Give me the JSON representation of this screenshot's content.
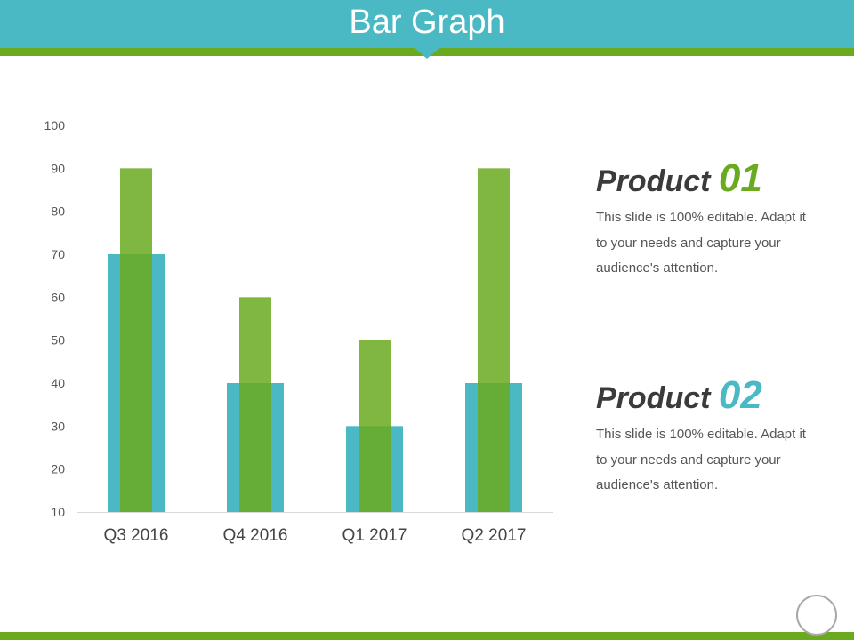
{
  "header": {
    "title": "Bar Graph"
  },
  "chart_data": {
    "type": "bar",
    "categories": [
      "Q3 2016",
      "Q4 2016",
      "Q1 2017",
      "Q2 2017"
    ],
    "series": [
      {
        "values": [
          70,
          40,
          30,
          40
        ],
        "color": "#4ab9c4"
      },
      {
        "values": [
          90,
          60,
          50,
          90
        ],
        "color": "#6aaa1f"
      }
    ],
    "ylim": [
      10,
      100
    ],
    "yticks": [
      "100",
      "90",
      "80",
      "70",
      "60",
      "50",
      "40",
      "30",
      "20",
      "10"
    ],
    "grid": false,
    "title": "",
    "xlabel": "",
    "ylabel": ""
  },
  "products": [
    {
      "name": "Product",
      "number": "01",
      "description": "This slide is 100% editable. Adapt it to your needs and capture your audience's attention."
    },
    {
      "name": "Product",
      "number": "02",
      "description": "This slide is 100% editable. Adapt it to your needs and capture your audience's attention."
    }
  ]
}
